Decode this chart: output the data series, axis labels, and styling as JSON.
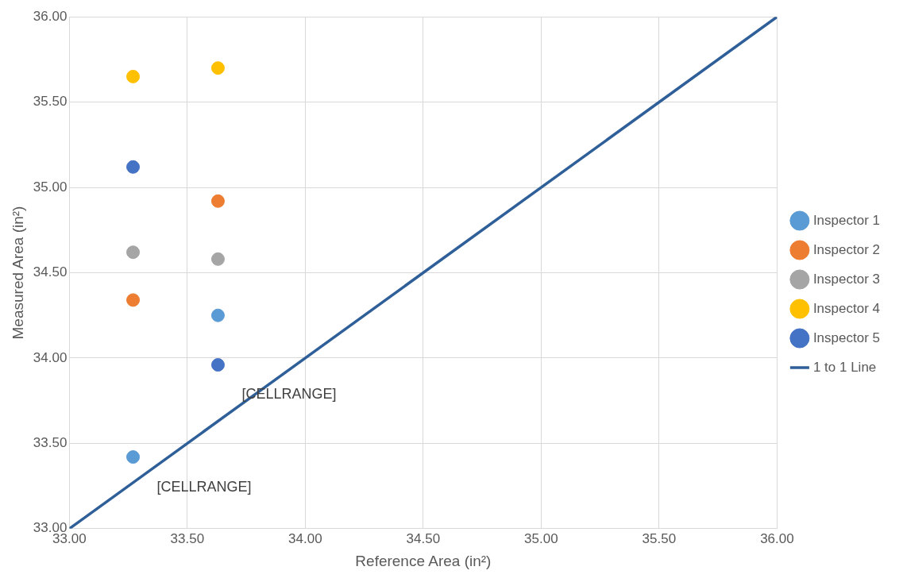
{
  "chart_data": {
    "type": "scatter",
    "xlabel": "Reference Area (in²)",
    "ylabel": "Measured Area (in²)",
    "series": [
      {
        "name": "Inspector 1",
        "color": "#5b9bd5",
        "x": [
          33.27,
          33.63
        ],
        "values": [
          33.42,
          34.25
        ]
      },
      {
        "name": "Inspector 2",
        "color": "#ed7d31",
        "x": [
          33.27,
          33.63
        ],
        "values": [
          34.34,
          34.92
        ]
      },
      {
        "name": "Inspector 3",
        "color": "#a5a5a5",
        "x": [
          33.27,
          33.63
        ],
        "values": [
          34.62,
          34.58
        ]
      },
      {
        "name": "Inspector 4",
        "color": "#ffc000",
        "x": [
          33.27,
          33.63
        ],
        "values": [
          35.65,
          35.7
        ]
      },
      {
        "name": "Inspector 5",
        "color": "#4472c4",
        "x": [
          33.27,
          33.63
        ],
        "values": [
          35.12,
          33.96
        ]
      },
      {
        "name": "1 to 1 Line",
        "type": "line",
        "marker": "none",
        "color": "#2f5f98",
        "x": [
          33,
          36
        ],
        "values": [
          33,
          36
        ]
      }
    ],
    "xlim": [
      33,
      36
    ],
    "ylim": [
      33,
      36
    ],
    "xticks": [
      {
        "value": 33,
        "label": "33.00"
      },
      {
        "value": 33.5,
        "label": "33.50"
      },
      {
        "value": 34,
        "label": "34.00"
      },
      {
        "value": 34.5,
        "label": "34.50"
      },
      {
        "value": 35,
        "label": "35.00"
      },
      {
        "value": 35.5,
        "label": "35.50"
      },
      {
        "value": 36,
        "label": "36.00"
      }
    ],
    "yticks": [
      {
        "value": 33,
        "label": "33.00"
      },
      {
        "value": 33.5,
        "label": "33.50"
      },
      {
        "value": 34,
        "label": "34.00"
      },
      {
        "value": 34.5,
        "label": "34.50"
      },
      {
        "value": 35,
        "label": "35.00"
      },
      {
        "value": 35.5,
        "label": "35.50"
      },
      {
        "value": 36,
        "label": "36.00"
      }
    ],
    "annotations": [
      {
        "text": "[CELLRANGE]",
        "x": 33.63,
        "y": 33.96
      },
      {
        "text": "[CELLRANGE]",
        "x": 33.27,
        "y": 33.42
      }
    ],
    "grid": true,
    "legend": "right",
    "marker": "circle"
  }
}
